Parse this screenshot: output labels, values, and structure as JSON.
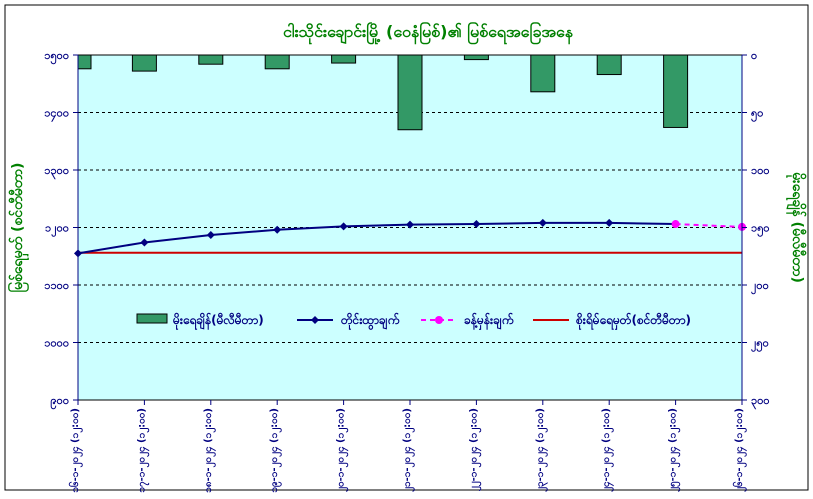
{
  "chart_data": {
    "type": "bar+line",
    "title": "ငါးသိုင်းချောင်းမြို့ (ဝေနံမြစ်)၏ မြစ်ရေအခြေအနေ",
    "ylabel_left": "မြစ်ရေမှတ် (စင်တီမီတာ)",
    "ylabel_right": "မိုးရေချိန် (မီလီမီတာ)",
    "x_categories": [
      "၁၆-၁-၂၀၂၄ (၁၂:၀၀)",
      "၁၇-၁-၂၀၂၄ (၁၂:၀၀)",
      "၁၈-၁-၂၀၂၄ (၁၂:၀၀)",
      "၁၉-၁-၂၀၂၄ (၁၂:၀၀)",
      "၂၀-၁-၂၀၂၄ (၁၂:၀၀)",
      "၂၁-၁-၂၀၂၄ (၁၂:၀၀)",
      "၂၂-၁-၂၀၂၄ (၁၂:၀၀)",
      "၂၃-၁-၂၀၂၄ (၁၂:၀၀)",
      "၂၄-၁-၂၀၂၄ (၁၂:၀၀)",
      "၂၅-၁-၂၀၂၄ (၁၂:၀၀)",
      "၂၆-၁-၂၀၂၄ (၁၂:၀၀)"
    ],
    "left_axis": {
      "min": 900,
      "max": 1500,
      "step": 100,
      "tick_labels": [
        "၉၀၀",
        "၁၀၀၀",
        "၁၁၀၀",
        "၁၂၀၀",
        "၁၃၀၀",
        "၁၄၀၀",
        "၁၅၀၀"
      ]
    },
    "right_axis": {
      "min": 0,
      "max": 300,
      "step": 50,
      "reversed": true,
      "tick_labels": [
        "၀",
        "၅၀",
        "၁၀၀",
        "၁၅၀",
        "၂၀၀",
        "၂၅၀",
        "၃၀၀"
      ]
    },
    "rainfall": {
      "name": "မိုးရေချိန်(မီလီမီတာ)",
      "color": "#339966",
      "axis": "right",
      "values": [
        12,
        14,
        8,
        12,
        7,
        65,
        4,
        32,
        17,
        63
      ]
    },
    "observed": {
      "name": "တိုင်းထွာချက်",
      "color": "#000080",
      "axis": "left",
      "values": [
        1155,
        1174,
        1187,
        1196,
        1202,
        1205,
        1206,
        1208,
        1208,
        1206
      ]
    },
    "forecast": {
      "name": "ခန့်မှန်းချက်",
      "color": "#ff00ff",
      "axis": "left",
      "x_index": [
        9,
        10
      ],
      "values": [
        1206,
        1201
      ]
    },
    "danger_level": {
      "name": "စိုးရိမ်ရေမှတ်(စင်တီမီတာ)",
      "color": "#cc0000",
      "value": 1156
    },
    "plot_bg": "#ccffff",
    "grid": "dashed horizontal",
    "legend_position": "inside, middle"
  }
}
